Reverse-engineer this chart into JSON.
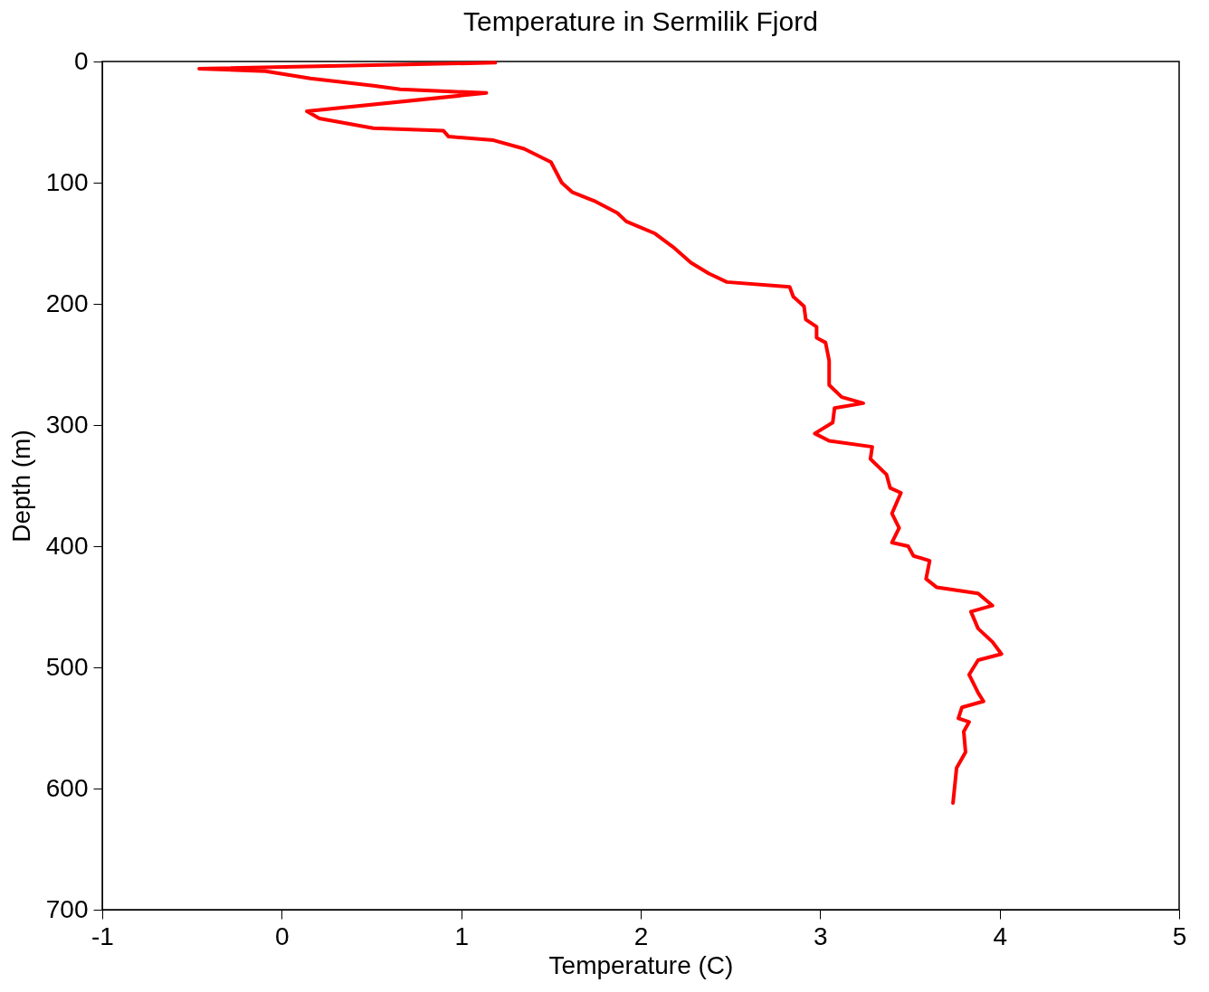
{
  "chart_data": {
    "type": "line",
    "title": "Temperature in Sermilik Fjord",
    "xlabel": "Temperature (C)",
    "ylabel": "Depth (m)",
    "xlim": [
      -1,
      5
    ],
    "xticks": [
      -1,
      0,
      1,
      2,
      3,
      4,
      5
    ],
    "ylim": [
      700,
      0
    ],
    "yticks": [
      0,
      100,
      200,
      300,
      400,
      500,
      600,
      700
    ],
    "grid": false,
    "series": [
      {
        "color": "#ff0000",
        "x": [
          1.19,
          -0.46,
          -0.09,
          0.16,
          0.51,
          0.66,
          1.14,
          0.14,
          0.21,
          0.51,
          0.9,
          0.93,
          1.18,
          1.35,
          1.5,
          1.56,
          1.62,
          1.74,
          1.87,
          1.92,
          2.08,
          2.18,
          2.28,
          2.38,
          2.48,
          2.83,
          2.85,
          2.91,
          2.92,
          2.98,
          2.98,
          3.03,
          3.05,
          3.05,
          3.12,
          3.24,
          3.08,
          3.07,
          2.97,
          3.05,
          3.29,
          3.28,
          3.37,
          3.39,
          3.45,
          3.4,
          3.44,
          3.4,
          3.49,
          3.52,
          3.61,
          3.59,
          3.65,
          3.88,
          3.96,
          3.84,
          3.88,
          3.96,
          4.01,
          3.88,
          3.83,
          3.88,
          3.91,
          3.79,
          3.77,
          3.83,
          3.8,
          3.81,
          3.76,
          3.74
        ],
        "values": [
          1,
          6,
          8,
          14,
          20,
          23,
          26,
          41,
          47,
          55,
          57,
          62,
          65,
          72,
          83,
          100,
          108,
          115,
          125,
          132,
          142,
          153,
          166,
          175,
          182,
          186,
          194,
          202,
          213,
          219,
          228,
          232,
          247,
          267,
          277,
          282,
          286,
          298,
          307,
          313,
          318,
          328,
          341,
          352,
          356,
          373,
          385,
          397,
          400,
          408,
          412,
          427,
          434,
          439,
          449,
          454,
          468,
          479,
          489,
          494,
          506,
          521,
          528,
          533,
          542,
          545,
          553,
          570,
          583,
          612
        ]
      }
    ]
  }
}
